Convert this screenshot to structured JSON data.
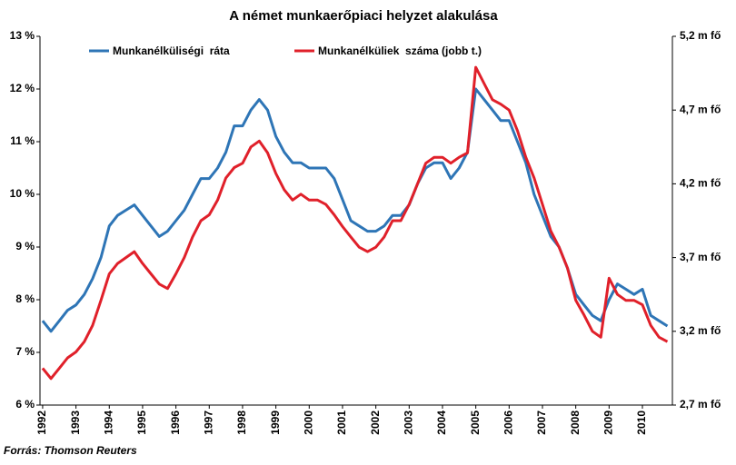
{
  "chart_data": {
    "type": "line",
    "title": "A német munkaerőpiaci helyzet alakulása",
    "source": "Forrás: Thomson Reuters",
    "x": [
      1992,
      1992.25,
      1992.5,
      1992.75,
      1993,
      1993.25,
      1993.5,
      1993.75,
      1994,
      1994.25,
      1994.5,
      1994.75,
      1995,
      1995.25,
      1995.5,
      1995.75,
      1996,
      1996.25,
      1996.5,
      1996.75,
      1997,
      1997.25,
      1997.5,
      1997.75,
      1998,
      1998.25,
      1998.5,
      1998.75,
      1999,
      1999.25,
      1999.5,
      1999.75,
      2000,
      2000.25,
      2000.5,
      2000.75,
      2001,
      2001.25,
      2001.5,
      2001.75,
      2002,
      2002.25,
      2002.5,
      2002.75,
      2003,
      2003.25,
      2003.5,
      2003.75,
      2004,
      2004.25,
      2004.5,
      2004.75,
      2005,
      2005.25,
      2005.5,
      2005.75,
      2006,
      2006.25,
      2006.5,
      2006.75,
      2007,
      2007.25,
      2007.5,
      2007.75,
      2008,
      2008.25,
      2008.5,
      2008.75,
      2009,
      2009.25,
      2009.5,
      2009.75,
      2010,
      2010.25,
      2010.5,
      2010.75
    ],
    "series": [
      {
        "name": "Munkanélküliségi  ráta",
        "color": "#2e75b6",
        "values": [
          7.6,
          7.4,
          7.6,
          7.8,
          7.9,
          8.1,
          8.4,
          8.8,
          9.4,
          9.6,
          9.7,
          9.8,
          9.6,
          9.4,
          9.2,
          9.3,
          9.5,
          9.7,
          10.0,
          10.3,
          10.3,
          10.5,
          10.8,
          11.3,
          11.3,
          11.6,
          11.8,
          11.6,
          11.1,
          10.8,
          10.6,
          10.6,
          10.5,
          10.5,
          10.5,
          10.3,
          9.9,
          9.5,
          9.4,
          9.3,
          9.3,
          9.4,
          9.6,
          9.6,
          9.8,
          10.2,
          10.5,
          10.6,
          10.6,
          10.3,
          10.5,
          10.8,
          12.0,
          11.8,
          11.6,
          11.4,
          11.4,
          11.0,
          10.6,
          10.0,
          9.6,
          9.2,
          9.0,
          8.6,
          8.1,
          7.9,
          7.7,
          7.6,
          8.0,
          8.3,
          8.2,
          8.1,
          8.2,
          7.7,
          7.6,
          7.5
        ]
      },
      {
        "name": "Munkanélküliek  száma (jobb t.)",
        "color": "#e0202a",
        "axis": "y2",
        "values": [
          2.95,
          2.88,
          2.95,
          3.02,
          3.06,
          3.13,
          3.24,
          3.41,
          3.59,
          3.66,
          3.7,
          3.74,
          3.66,
          3.59,
          3.52,
          3.49,
          3.59,
          3.7,
          3.84,
          3.95,
          3.99,
          4.09,
          4.24,
          4.31,
          4.34,
          4.45,
          4.49,
          4.41,
          4.27,
          4.16,
          4.09,
          4.13,
          4.09,
          4.09,
          4.06,
          3.99,
          3.91,
          3.84,
          3.77,
          3.74,
          3.77,
          3.84,
          3.95,
          3.95,
          4.06,
          4.2,
          4.34,
          4.38,
          4.38,
          4.34,
          4.38,
          4.41,
          4.99,
          4.88,
          4.77,
          4.74,
          4.7,
          4.56,
          4.38,
          4.24,
          4.06,
          3.88,
          3.77,
          3.63,
          3.41,
          3.31,
          3.2,
          3.16,
          3.56,
          3.45,
          3.41,
          3.41,
          3.38,
          3.24,
          3.16,
          3.13
        ]
      }
    ],
    "xlim": [
      1991.92,
      2010.9
    ],
    "xticks": [
      1992,
      1993,
      1994,
      1995,
      1996,
      1997,
      1998,
      1999,
      2000,
      2001,
      2002,
      2003,
      2004,
      2005,
      2006,
      2007,
      2008,
      2009,
      2010
    ],
    "ylim": [
      6,
      13
    ],
    "yticks": [
      {
        "value": 6,
        "label": "6 %"
      },
      {
        "value": 7,
        "label": "7 %"
      },
      {
        "value": 8,
        "label": "8 %"
      },
      {
        "value": 9,
        "label": "9 %"
      },
      {
        "value": 10,
        "label": "10 %"
      },
      {
        "value": 11,
        "label": "11 %"
      },
      {
        "value": 12,
        "label": "12 %"
      },
      {
        "value": 13,
        "label": "13 %"
      }
    ],
    "y2lim": [
      2.7,
      5.2
    ],
    "y2ticks": [
      {
        "value": 2.7,
        "label": "2,7 m fő"
      },
      {
        "value": 3.2,
        "label": "3,2 m fő"
      },
      {
        "value": 3.7,
        "label": "3,7 m fő"
      },
      {
        "value": 4.2,
        "label": "4,2 m fő"
      },
      {
        "value": 4.7,
        "label": "4,7 m fő"
      },
      {
        "value": 5.2,
        "label": "5,2 m fő"
      }
    ],
    "grid": false,
    "legend": "top"
  }
}
